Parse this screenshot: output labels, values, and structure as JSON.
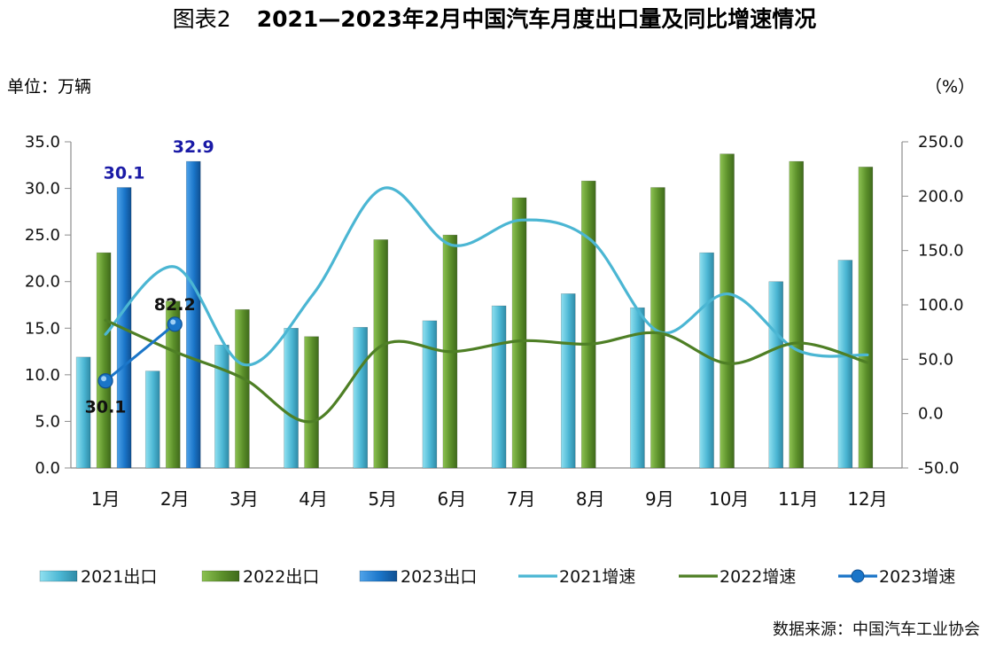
{
  "chart_data": {
    "type": "bar",
    "title_prefix": "图表2",
    "title": "2021—2023年2月中国汽车月度出口量及同比增速情况",
    "left_unit": "单位：万辆",
    "right_unit": "（%）",
    "categories": [
      "1月",
      "2月",
      "3月",
      "4月",
      "5月",
      "6月",
      "7月",
      "8月",
      "9月",
      "10月",
      "11月",
      "12月"
    ],
    "y_left": {
      "ticks": [
        "0.0",
        "5.0",
        "10.0",
        "15.0",
        "20.0",
        "25.0",
        "30.0",
        "35.0"
      ],
      "lim": [
        0,
        35
      ]
    },
    "y_right": {
      "ticks": [
        "-50.0",
        "0.0",
        "50.0",
        "100.0",
        "150.0",
        "200.0",
        "250.0"
      ],
      "lim": [
        -50,
        250
      ]
    },
    "bar_series": [
      {
        "name": "2021出口",
        "color": "#4bb6d3",
        "values": [
          11.9,
          10.4,
          13.2,
          15.0,
          15.1,
          15.8,
          17.4,
          18.7,
          17.2,
          23.1,
          20.0,
          22.3
        ]
      },
      {
        "name": "2022出口",
        "color": "#5b8f2a",
        "values": [
          23.1,
          17.9,
          17.0,
          14.1,
          24.5,
          25.0,
          29.0,
          30.8,
          30.1,
          33.7,
          32.9,
          32.3
        ]
      },
      {
        "name": "2023出口",
        "color": "#1a75c8",
        "values": [
          30.1,
          32.9
        ]
      }
    ],
    "line_series": [
      {
        "name": "2021增速",
        "color": "#4bb6d3",
        "values": [
          73,
          135,
          45,
          110,
          207,
          155,
          178,
          160,
          75,
          110,
          58,
          54
        ]
      },
      {
        "name": "2022增速",
        "color": "#4e7f25",
        "values": [
          86,
          57,
          32,
          -7,
          63,
          57,
          67,
          64,
          74,
          46,
          65,
          47
        ]
      },
      {
        "name": "2023增速",
        "color": "#1a75c8",
        "values": [
          30.1,
          82.2
        ]
      }
    ],
    "data_labels": {
      "bar_2023": [
        "30.1",
        "32.9"
      ],
      "line_2023": [
        "30.1",
        "82.2"
      ]
    },
    "legend_position": "bottom",
    "source": "数据来源：中国汽车工业协会"
  }
}
